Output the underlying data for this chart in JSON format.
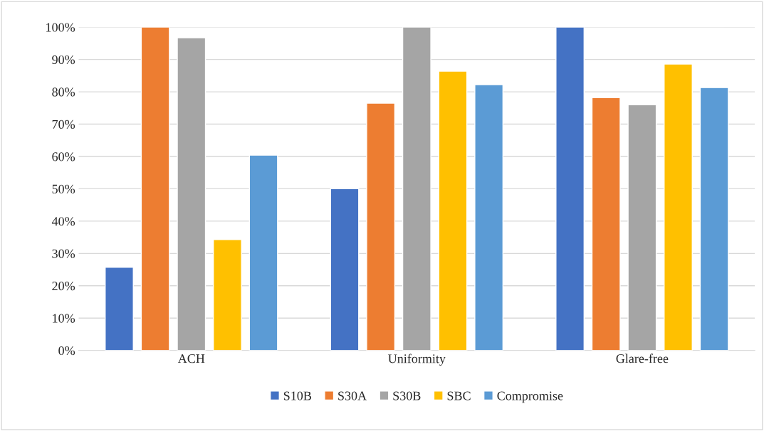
{
  "chart_data": {
    "type": "bar",
    "categories": [
      "ACH",
      "Uniformity",
      "Glare-free"
    ],
    "series": [
      {
        "name": "S10B",
        "color": "#4472c4",
        "values": [
          25.7,
          50,
          100
        ]
      },
      {
        "name": "S30A",
        "color": "#ed7d31",
        "values": [
          100,
          76.5,
          78.2
        ]
      },
      {
        "name": "S30B",
        "color": "#a5a5a5",
        "values": [
          96.7,
          100,
          76.0
        ]
      },
      {
        "name": "SBC",
        "color": "#ffc000",
        "values": [
          34.3,
          86.4,
          88.6
        ]
      },
      {
        "name": "Compromise",
        "color": "#5b9bd5",
        "values": [
          60.4,
          82.2,
          81.3
        ]
      }
    ],
    "ylim": [
      0,
      100
    ],
    "yticks": [
      {
        "value": 0,
        "label": "0%"
      },
      {
        "value": 10,
        "label": "10%"
      },
      {
        "value": 20,
        "label": "20%"
      },
      {
        "value": 30,
        "label": "30%"
      },
      {
        "value": 40,
        "label": "40%"
      },
      {
        "value": 50,
        "label": "50%"
      },
      {
        "value": 60,
        "label": "60%"
      },
      {
        "value": 70,
        "label": "70%"
      },
      {
        "value": 80,
        "label": "80%"
      },
      {
        "value": 90,
        "label": "90%"
      },
      {
        "value": 100,
        "label": "100%"
      }
    ],
    "grid": "y",
    "legend": "bottom"
  }
}
